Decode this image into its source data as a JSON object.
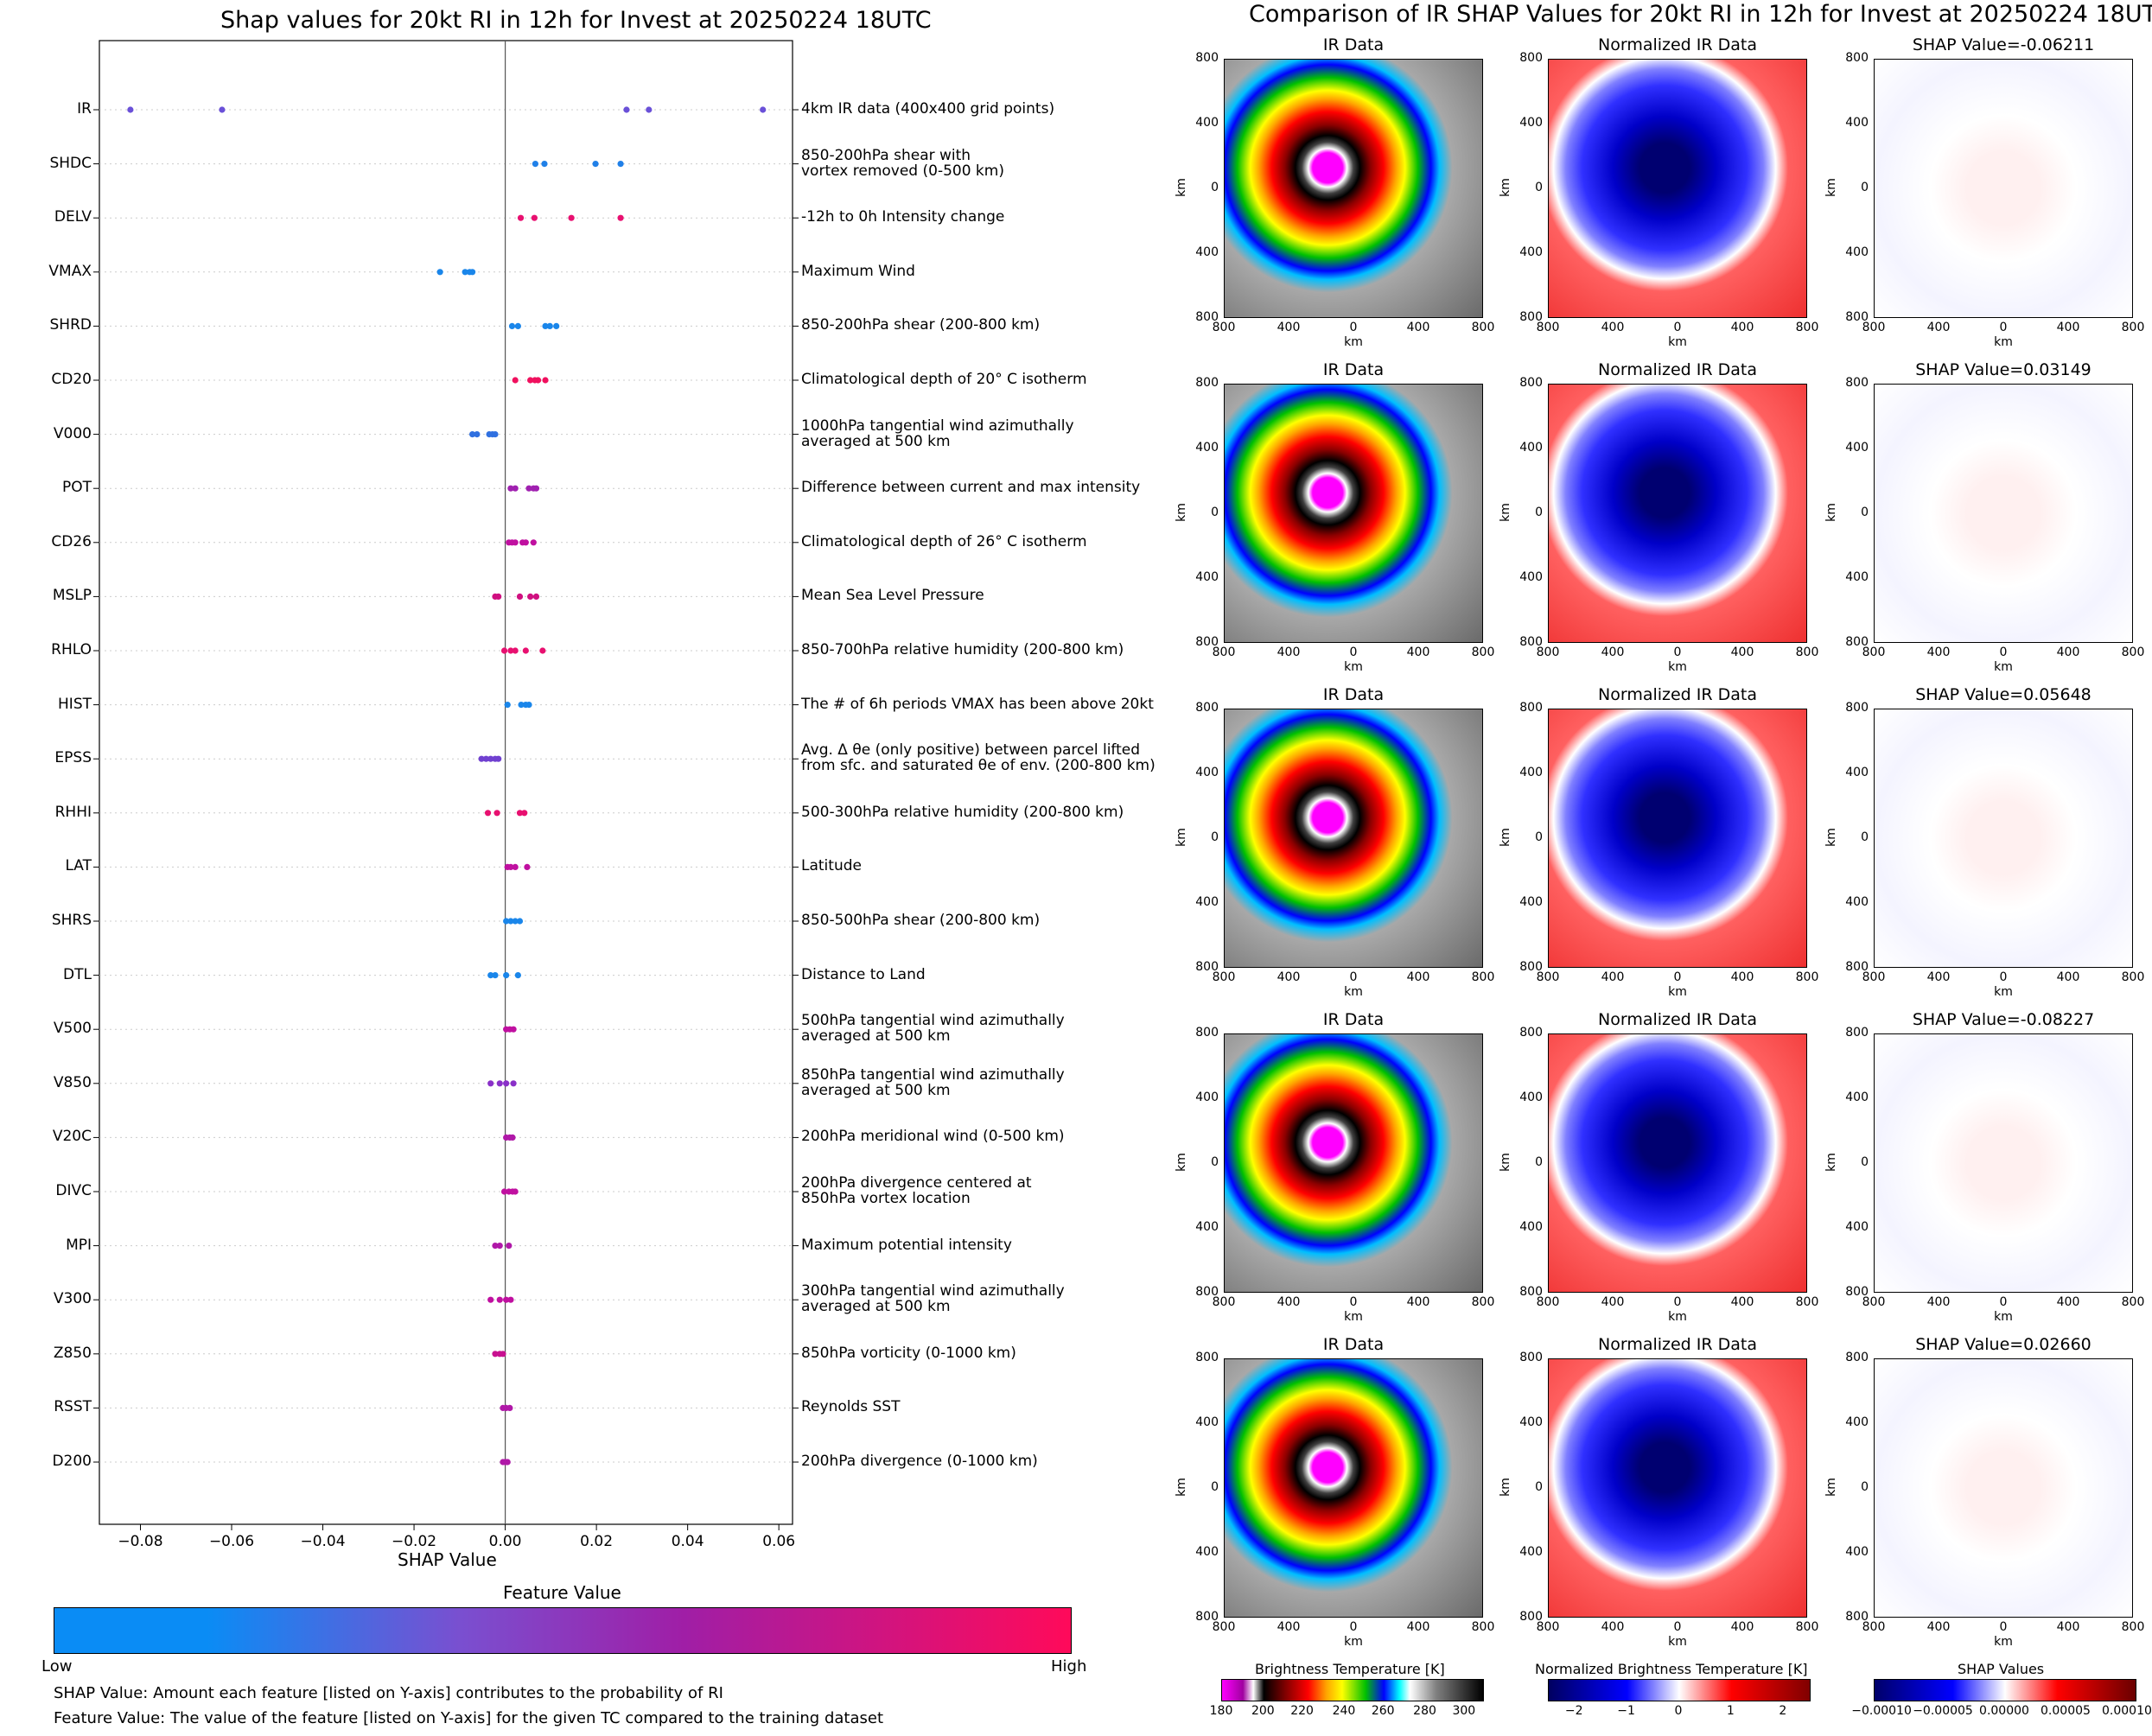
{
  "left": {
    "title": "Shap values for 20kt RI in 12h for Invest at 20250224 18UTC",
    "xlabel": "SHAP Value",
    "colorbar_title": "Feature Value",
    "colorbar_low": "Low",
    "colorbar_high": "High",
    "colorbar_colors": [
      "#0a8cf5",
      "#7a4fd0",
      "#a01ea6",
      "#ff0a5a"
    ],
    "footnote1": "SHAP Value: Amount each feature [listed on Y-axis] contributes to the probability of RI",
    "footnote2": "Feature Value: The value of the feature [listed on Y-axis] for the given TC compared to the training dataset"
  },
  "right": {
    "title": "Comparison of IR SHAP Values for 20kt RI in 12h for Invest at 20250224 18UTC",
    "col_titles": [
      "IR Data",
      "Normalized IR Data"
    ],
    "shap_titles": [
      "SHAP Value=-0.06211",
      "SHAP Value=0.03149",
      "SHAP Value=0.05648",
      "SHAP Value=-0.08227",
      "SHAP Value=0.02660"
    ],
    "axis_unit": "km",
    "axis_ticks": [
      "800",
      "400",
      "0",
      "400",
      "800"
    ],
    "cbar1": {
      "title": "Brightness Temperature [K]",
      "ticks": [
        "180",
        "200",
        "220",
        "240",
        "260",
        "280",
        "300"
      ]
    },
    "cbar2": {
      "title": "Normalized Brightness Temperature [K]",
      "ticks": [
        "−2",
        "−1",
        "0",
        "1",
        "2"
      ]
    },
    "cbar3": {
      "title": "SHAP Values",
      "ticks": [
        "−0.00010",
        "−0.00005",
        "0.00000",
        "0.00005",
        "0.00010"
      ]
    }
  },
  "chart_data": {
    "type": "scatter",
    "title": "Shap values for 20kt RI in 12h for Invest at 20250224 18UTC",
    "xlabel": "SHAP Value",
    "xlim": [
      -0.089,
      0.063
    ],
    "xticks": [
      -0.08,
      -0.06,
      -0.04,
      -0.02,
      0.0,
      0.02,
      0.04,
      0.06
    ],
    "xtick_labels": [
      "−0.08",
      "−0.06",
      "−0.04",
      "−0.02",
      "0.00",
      "0.02",
      "0.04",
      "0.06"
    ],
    "features": [
      {
        "name": "IR",
        "desc": "4km IR data (400x400 grid points)",
        "color": "#6a50d8",
        "values": [
          -0.0822,
          -0.0621,
          0.0266,
          0.0315,
          0.0565
        ]
      },
      {
        "name": "SHDC",
        "desc": "850-200hPa shear with\nvortex removed (0-500 km)",
        "color": "#2080e8",
        "values": [
          0.0066,
          0.0086,
          0.0198,
          0.0253
        ]
      },
      {
        "name": "DELV",
        "desc": "-12h to 0h Intensity change",
        "color": "#e81070",
        "values": [
          0.0034,
          0.0064,
          0.0145,
          0.0253
        ]
      },
      {
        "name": "VMAX",
        "desc": "Maximum Wind",
        "color": "#1a86ea",
        "values": [
          -0.0143,
          -0.0088,
          -0.0078,
          -0.0072
        ]
      },
      {
        "name": "SHRD",
        "desc": "850-200hPa shear (200-800 km)",
        "color": "#1a86ea",
        "values": [
          0.0015,
          0.0028,
          0.0088,
          0.0098,
          0.0112
        ]
      },
      {
        "name": "CD20",
        "desc": "Climatological depth of 20° C isotherm",
        "color": "#f0105e",
        "values": [
          0.0022,
          0.0055,
          0.0065,
          0.0072,
          0.0088
        ]
      },
      {
        "name": "V000",
        "desc": "1000hPa tangential wind azimuthally\naveraged at 500 km",
        "color": "#3070e0",
        "values": [
          -0.0072,
          -0.0062,
          -0.0035,
          -0.0028,
          -0.0022
        ]
      },
      {
        "name": "POT",
        "desc": "Difference between current and max intensity",
        "color": "#a020b0",
        "values": [
          0.0012,
          0.0022,
          0.0052,
          0.0062,
          0.0068
        ]
      },
      {
        "name": "CD26",
        "desc": "Climatological depth of 26° C isotherm",
        "color": "#c010a0",
        "values": [
          0.0008,
          0.0015,
          0.0022,
          0.0038,
          0.0045,
          0.0062
        ]
      },
      {
        "name": "MSLP",
        "desc": "Mean Sea Level Pressure",
        "color": "#d01080",
        "values": [
          -0.0022,
          -0.0015,
          0.0032,
          0.0055,
          0.0068
        ]
      },
      {
        "name": "RHLO",
        "desc": "850-700hPa relative humidity (200-800 km)",
        "color": "#e81070",
        "values": [
          -0.0002,
          0.0012,
          0.0022,
          0.0045,
          0.0082
        ]
      },
      {
        "name": "HIST",
        "desc": "The # of 6h periods VMAX has been above 20kt",
        "color": "#1a86ea",
        "values": [
          0.0005,
          0.0035,
          0.0045,
          0.0052
        ]
      },
      {
        "name": "EPSS",
        "desc": "Avg. Δ θe (only positive) between parcel lifted\nfrom sfc. and saturated θe of env. (200-800 km)",
        "color": "#7040d0",
        "values": [
          -0.0052,
          -0.0042,
          -0.0032,
          -0.0022,
          -0.0015
        ]
      },
      {
        "name": "RHHI",
        "desc": "500-300hPa relative humidity (200-800 km)",
        "color": "#e81070",
        "values": [
          -0.0038,
          -0.0018,
          0.0032,
          0.0042
        ]
      },
      {
        "name": "LAT",
        "desc": "Latitude",
        "color": "#c010a0",
        "values": [
          0.0005,
          0.0012,
          0.0022,
          0.0048
        ]
      },
      {
        "name": "SHRS",
        "desc": "850-500hPa shear (200-800 km)",
        "color": "#1a86ea",
        "values": [
          0.0002,
          0.0012,
          0.0022,
          0.0032
        ]
      },
      {
        "name": "DTL",
        "desc": "Distance to Land",
        "color": "#1a86ea",
        "values": [
          -0.0032,
          -0.0022,
          0.0002,
          0.0028
        ]
      },
      {
        "name": "V500",
        "desc": "500hPa tangential wind azimuthally\naveraged at 500 km",
        "color": "#c010a0",
        "values": [
          0.0002,
          0.001,
          0.0018
        ]
      },
      {
        "name": "V850",
        "desc": "850hPa tangential wind azimuthally\naveraged at 500 km",
        "color": "#8a30c8",
        "values": [
          -0.0032,
          -0.0012,
          0.0002,
          0.0018
        ]
      },
      {
        "name": "V20C",
        "desc": "200hPa meridional wind (0-500 km)",
        "color": "#b018a8",
        "values": [
          0.0002,
          0.001,
          0.0016
        ]
      },
      {
        "name": "DIVC",
        "desc": "200hPa divergence centered at\n850hPa vortex location",
        "color": "#c010a0",
        "values": [
          -0.0002,
          0.0008,
          0.0016,
          0.0022
        ]
      },
      {
        "name": "MPI",
        "desc": "Maximum potential intensity",
        "color": "#b018a8",
        "values": [
          -0.0022,
          -0.0012,
          0.0008
        ]
      },
      {
        "name": "V300",
        "desc": "300hPa tangential wind azimuthally\naveraged at 500 km",
        "color": "#c010a0",
        "values": [
          -0.0032,
          -0.0012,
          0.0002,
          0.0012
        ]
      },
      {
        "name": "Z850",
        "desc": "850hPa vorticity (0-1000 km)",
        "color": "#c81090",
        "values": [
          -0.0022,
          -0.0012,
          -0.0005
        ]
      },
      {
        "name": "RSST",
        "desc": "Reynolds SST",
        "color": "#b018a8",
        "values": [
          -0.0005,
          0.0002,
          0.001
        ]
      },
      {
        "name": "D200",
        "desc": "200hPa divergence (0-1000 km)",
        "color": "#b018a8",
        "values": [
          -0.0005,
          0.0,
          0.0005
        ]
      }
    ]
  }
}
